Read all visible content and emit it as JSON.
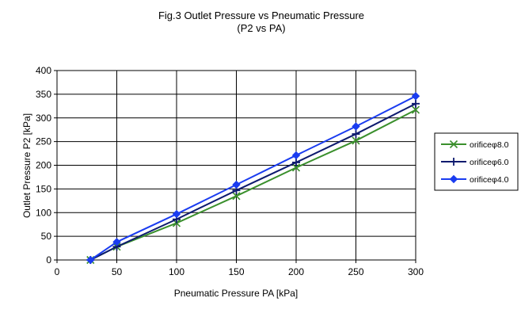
{
  "chart_data": {
    "type": "line",
    "title": "Fig.3 Outlet Pressure vs Pneumatic Pressure",
    "subtitle": "(P2 vs PA)",
    "xlabel": "Pneumatic Pressure PA [kPa]",
    "ylabel": "Outlet Pressure P2 [kPa]",
    "xlim": [
      0,
      300
    ],
    "ylim": [
      0,
      400
    ],
    "xticks": [
      0,
      50,
      100,
      150,
      200,
      250,
      300
    ],
    "yticks": [
      0,
      50,
      100,
      150,
      200,
      250,
      300,
      350,
      400
    ],
    "grid": true,
    "legend_position": "right",
    "series": [
      {
        "name": "orificeφ8.0",
        "color": "#3a8f2c",
        "marker": "x",
        "points": [
          [
            28,
            0
          ],
          [
            50,
            28
          ],
          [
            100,
            78
          ],
          [
            150,
            135
          ],
          [
            200,
            195
          ],
          [
            250,
            252
          ],
          [
            300,
            317
          ]
        ]
      },
      {
        "name": "orificeφ6.0",
        "color": "#0d1a6e",
        "marker": "plus",
        "points": [
          [
            28,
            0
          ],
          [
            50,
            28
          ],
          [
            100,
            86
          ],
          [
            150,
            147
          ],
          [
            200,
            206
          ],
          [
            250,
            266
          ],
          [
            300,
            330
          ]
        ]
      },
      {
        "name": "orificeφ4.0",
        "color": "#1a3cf0",
        "marker": "diamond",
        "points": [
          [
            28,
            0
          ],
          [
            50,
            38
          ],
          [
            100,
            97
          ],
          [
            150,
            159
          ],
          [
            200,
            221
          ],
          [
            250,
            282
          ],
          [
            300,
            346
          ]
        ]
      }
    ]
  }
}
